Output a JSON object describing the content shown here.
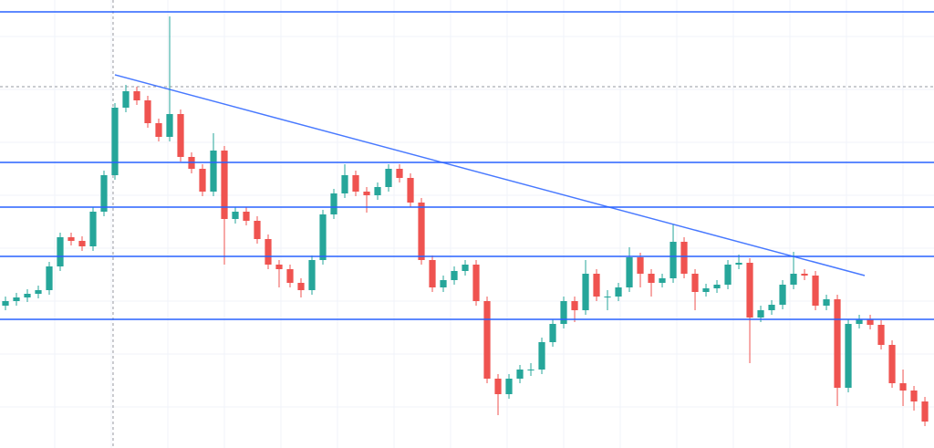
{
  "chart_data": {
    "type": "candlestick",
    "up_color": "#26a69a",
    "down_color": "#ef5350",
    "line_color": "#2962ff",
    "grid": true,
    "xlim": [
      -0.5,
      84.83
    ],
    "ylim": [
      0,
      491
    ],
    "open": [
      156,
      161,
      165,
      169,
      173,
      199,
      231,
      227,
      221,
      259,
      299,
      373,
      391,
      381,
      356,
      341,
      366,
      319,
      306,
      281,
      326,
      251,
      259,
      249,
      229,
      201,
      196,
      181,
      173,
      206,
      256,
      279,
      299,
      281,
      277,
      286,
      306,
      296,
      269,
      206,
      176,
      184,
      194,
      201,
      161,
      76,
      59,
      76,
      86,
      86,
      116,
      136,
      161,
      151,
      191,
      166,
      166,
      176,
      209,
      191,
      181,
      186,
      226,
      191,
      171,
      175,
      179,
      201,
      203,
      143,
      151,
      157,
      179,
      191,
      189,
      156,
      163,
      66,
      136,
      141,
      135,
      113,
      71,
      63,
      51
    ],
    "high": [
      166,
      170,
      174,
      178,
      204,
      236,
      236,
      232,
      264,
      304,
      378,
      398,
      396,
      386,
      361,
      473,
      371,
      324,
      311,
      345,
      331,
      264,
      264,
      254,
      234,
      206,
      201,
      186,
      211,
      261,
      284,
      311,
      304,
      286,
      291,
      311,
      311,
      301,
      274,
      211,
      189,
      199,
      206,
      206,
      166,
      81,
      81,
      91,
      93,
      121,
      141,
      166,
      166,
      206,
      196,
      173,
      181,
      220,
      214,
      196,
      191,
      245,
      231,
      196,
      180,
      184,
      206,
      212,
      208,
      156,
      162,
      184,
      215,
      196,
      194,
      168,
      168,
      141,
      146,
      146,
      140,
      118,
      86,
      68,
      56
    ],
    "low": [
      151,
      156,
      160,
      164,
      168,
      194,
      222,
      216,
      216,
      254,
      294,
      368,
      376,
      351,
      336,
      336,
      314,
      301,
      276,
      276,
      201,
      246,
      244,
      224,
      196,
      176,
      176,
      165,
      168,
      201,
      251,
      274,
      276,
      258,
      272,
      281,
      291,
      264,
      201,
      171,
      171,
      179,
      189,
      156,
      71,
      36,
      54,
      71,
      79,
      81,
      111,
      131,
      138,
      146,
      161,
      151,
      161,
      171,
      176,
      166,
      176,
      181,
      186,
      151,
      166,
      170,
      174,
      196,
      93,
      138,
      146,
      152,
      174,
      184,
      151,
      151,
      46,
      61,
      131,
      130,
      108,
      66,
      46,
      41,
      24
    ],
    "close": [
      161,
      165,
      169,
      173,
      199,
      231,
      227,
      221,
      259,
      299,
      373,
      391,
      381,
      356,
      341,
      366,
      319,
      306,
      281,
      326,
      251,
      259,
      249,
      229,
      201,
      196,
      181,
      173,
      206,
      256,
      279,
      299,
      281,
      277,
      286,
      306,
      296,
      269,
      206,
      176,
      184,
      194,
      201,
      161,
      76,
      59,
      76,
      86,
      86,
      116,
      136,
      161,
      151,
      191,
      166,
      166,
      176,
      209,
      191,
      181,
      186,
      226,
      191,
      171,
      175,
      179,
      201,
      203,
      143,
      151,
      157,
      179,
      191,
      189,
      156,
      163,
      66,
      136,
      141,
      135,
      113,
      71,
      63,
      51,
      29
    ],
    "levels": [
      478,
      313,
      264,
      210,
      141
    ],
    "trendline": {
      "x": [
        10,
        78.5
      ],
      "y": [
        409,
        189
      ]
    },
    "crosshair": {
      "x": 9.83,
      "y": 396
    }
  }
}
